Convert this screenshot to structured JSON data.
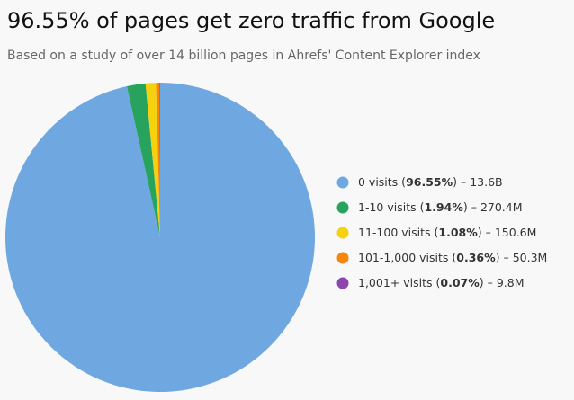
{
  "chart_data": {
    "type": "pie",
    "title": "96.55% of pages get zero traffic from Google",
    "subtitle": "Based on a study of over 14 billion pages in Ahrefs' Content Explorer index",
    "categories": [
      "0 visits",
      "1-10 visits",
      "11-100 visits",
      "101-1,000 visits",
      "1,001+ visits"
    ],
    "values": [
      96.55,
      1.94,
      1.08,
      0.36,
      0.07
    ],
    "value_labels": [
      "96.55%",
      "1.94%",
      "1.08%",
      "0.36%",
      "0.07%"
    ],
    "counts": [
      "13.6B",
      "270.4M",
      "150.6M",
      "50.3M",
      "9.8M"
    ],
    "colors": [
      "#6fa8e0",
      "#27a35d",
      "#f6d10f",
      "#f7860f",
      "#8e44ad"
    ],
    "legend": "right"
  }
}
